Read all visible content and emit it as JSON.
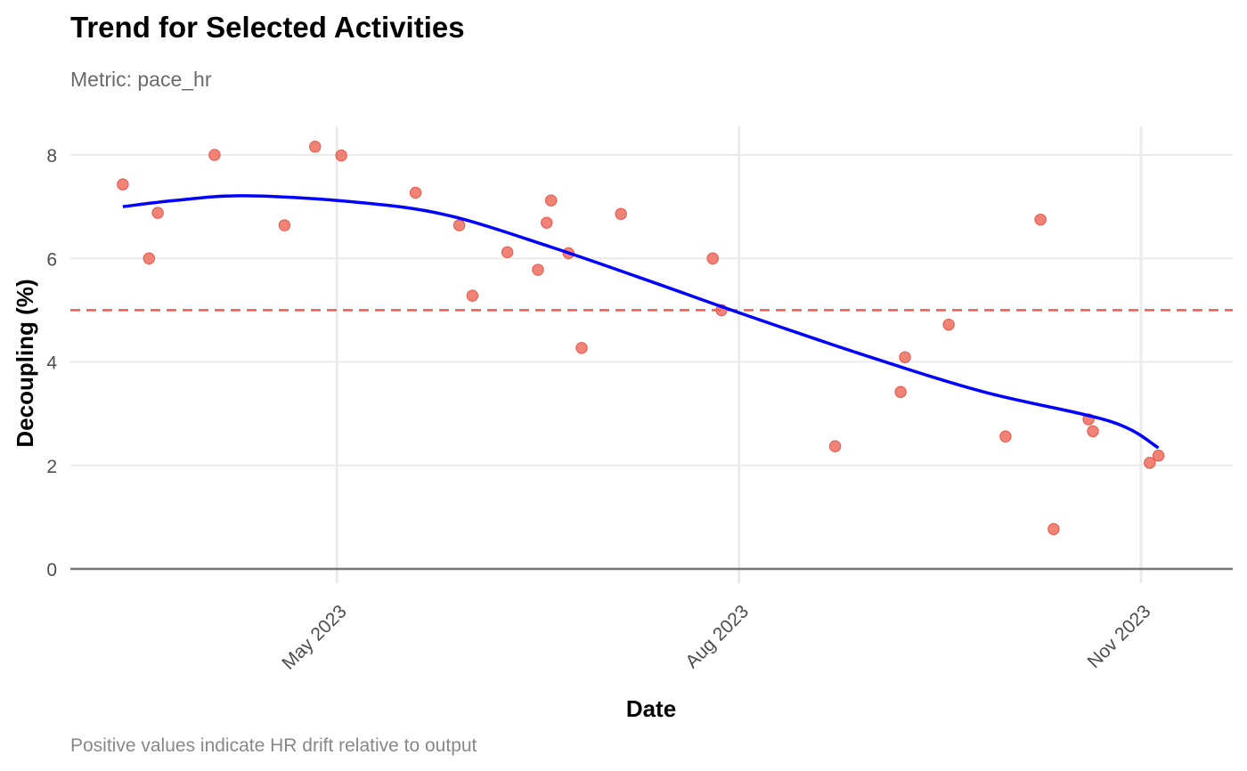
{
  "chart_data": {
    "type": "scatter",
    "title": "Trend for Selected Activities",
    "subtitle": "Metric: pace_hr",
    "caption": "Positive values indicate HR drift relative to output",
    "xlabel": "Date",
    "ylabel": "Decoupling (%)",
    "xlim": [
      "2023-03-01",
      "2023-11-22"
    ],
    "ylim": [
      0,
      8.5
    ],
    "x_ticks": [
      {
        "date": "2023-05-01",
        "label": "May 2023"
      },
      {
        "date": "2023-08-01",
        "label": "Aug 2023"
      },
      {
        "date": "2023-11-01",
        "label": "Nov 2023"
      }
    ],
    "y_ticks": [
      0,
      2,
      4,
      6,
      8
    ],
    "grid": true,
    "reference_line": {
      "y": 5,
      "style": "dashed",
      "color": "#f05a50"
    },
    "baseline": {
      "y": 0,
      "color": "#757575"
    },
    "point_color": "#ef6c5e",
    "trend_color": "#0000ff",
    "points": [
      {
        "x": "2023-03-13",
        "y": 7.43
      },
      {
        "x": "2023-03-19",
        "y": 6.0
      },
      {
        "x": "2023-03-21",
        "y": 6.88
      },
      {
        "x": "2023-04-03",
        "y": 8.0
      },
      {
        "x": "2023-04-19",
        "y": 6.64
      },
      {
        "x": "2023-04-26",
        "y": 8.16
      },
      {
        "x": "2023-05-02",
        "y": 7.99
      },
      {
        "x": "2023-05-19",
        "y": 7.27
      },
      {
        "x": "2023-05-29",
        "y": 6.64
      },
      {
        "x": "2023-06-01",
        "y": 5.28
      },
      {
        "x": "2023-06-09",
        "y": 6.12
      },
      {
        "x": "2023-06-16",
        "y": 5.78
      },
      {
        "x": "2023-06-18",
        "y": 6.69
      },
      {
        "x": "2023-06-19",
        "y": 7.12
      },
      {
        "x": "2023-06-23",
        "y": 6.1
      },
      {
        "x": "2023-06-26",
        "y": 4.27
      },
      {
        "x": "2023-07-05",
        "y": 6.86
      },
      {
        "x": "2023-07-26",
        "y": 6.0
      },
      {
        "x": "2023-07-28",
        "y": 5.0
      },
      {
        "x": "2023-08-23",
        "y": 2.37
      },
      {
        "x": "2023-09-07",
        "y": 3.42
      },
      {
        "x": "2023-09-08",
        "y": 4.09
      },
      {
        "x": "2023-09-18",
        "y": 4.72
      },
      {
        "x": "2023-10-01",
        "y": 2.56
      },
      {
        "x": "2023-10-09",
        "y": 6.75
      },
      {
        "x": "2023-10-12",
        "y": 0.77
      },
      {
        "x": "2023-10-20",
        "y": 2.89
      },
      {
        "x": "2023-10-21",
        "y": 2.66
      },
      {
        "x": "2023-11-03",
        "y": 2.05
      },
      {
        "x": "2023-11-05",
        "y": 2.19
      }
    ],
    "trend": [
      {
        "x": "2023-03-13",
        "y": 7.0
      },
      {
        "x": "2023-03-25",
        "y": 7.12
      },
      {
        "x": "2023-04-10",
        "y": 7.21
      },
      {
        "x": "2023-05-05",
        "y": 7.09
      },
      {
        "x": "2023-05-26",
        "y": 6.84
      },
      {
        "x": "2023-06-19",
        "y": 6.22
      },
      {
        "x": "2023-07-13",
        "y": 5.52
      },
      {
        "x": "2023-07-31",
        "y": 4.98
      },
      {
        "x": "2023-08-29",
        "y": 4.15
      },
      {
        "x": "2023-09-26",
        "y": 3.42
      },
      {
        "x": "2023-10-25",
        "y": 2.85
      },
      {
        "x": "2023-11-05",
        "y": 2.34
      }
    ]
  }
}
